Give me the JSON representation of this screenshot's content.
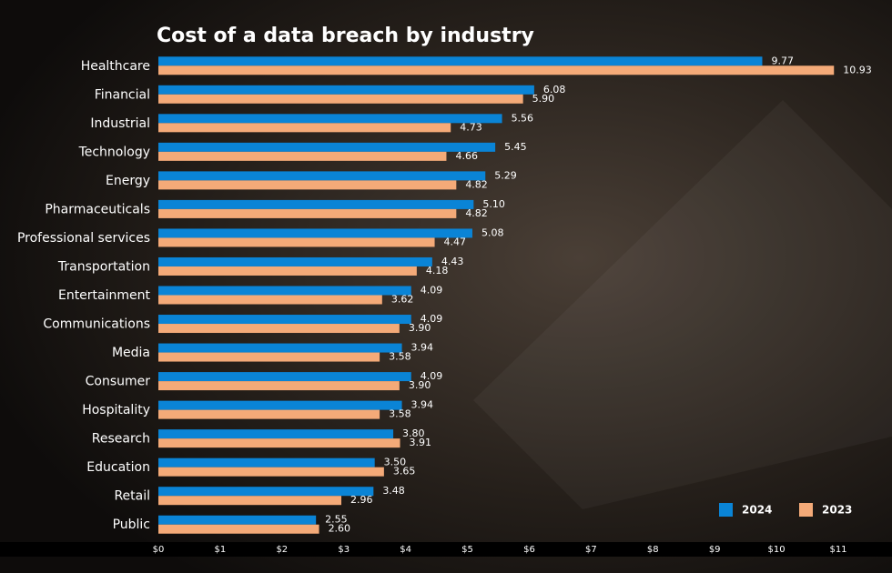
{
  "chart_data": {
    "type": "bar",
    "orientation": "horizontal",
    "title": "Cost of a data breach by industry",
    "categories": [
      "Healthcare",
      "Financial",
      "Industrial",
      "Technology",
      "Energy",
      "Pharmaceuticals",
      "Professional services",
      "Transportation",
      "Entertainment",
      "Communications",
      "Media",
      "Consumer",
      "Hospitality",
      "Research",
      "Education",
      "Retail",
      "Public"
    ],
    "series": [
      {
        "name": "2024",
        "color": "#0a84d6",
        "values": [
          9.77,
          6.08,
          5.56,
          5.45,
          5.29,
          5.1,
          5.08,
          4.43,
          4.09,
          4.09,
          3.94,
          4.09,
          3.94,
          3.8,
          3.5,
          3.48,
          2.55
        ],
        "value_labels": [
          "9.77",
          "6.08",
          "5.56",
          "5.45",
          "5.29",
          "5.10",
          "5.08",
          "4.43",
          "4.09",
          "4.09",
          "3.94",
          "4.09",
          "3.94",
          "3.80",
          "3.50",
          "3.48",
          "2.55"
        ]
      },
      {
        "name": "2023",
        "color": "#f4aa78",
        "values": [
          10.93,
          5.9,
          4.73,
          4.66,
          4.82,
          4.82,
          4.47,
          4.18,
          3.62,
          3.9,
          3.58,
          3.9,
          3.58,
          3.91,
          3.65,
          2.96,
          2.6
        ],
        "value_labels": [
          "10.93",
          "5.90",
          "4.73",
          "4.66",
          "4.82",
          "4.82",
          "4.47",
          "4.18",
          "3.62",
          "3.90",
          "3.58",
          "3.90",
          "3.58",
          "3.91",
          "3.65",
          "2.96",
          "2.60"
        ]
      }
    ],
    "xlim": [
      0,
      11
    ],
    "xticks": [
      {
        "value": 0,
        "label": "$0"
      },
      {
        "value": 1,
        "label": "$1"
      },
      {
        "value": 2,
        "label": "$2"
      },
      {
        "value": 3,
        "label": "$3"
      },
      {
        "value": 4,
        "label": "$4"
      },
      {
        "value": 5,
        "label": "$5"
      },
      {
        "value": 6,
        "label": "$6"
      },
      {
        "value": 7,
        "label": "$7"
      },
      {
        "value": 8,
        "label": "$8"
      },
      {
        "value": 9,
        "label": "$9"
      },
      {
        "value": 10,
        "label": "$10"
      },
      {
        "value": 11,
        "label": "$11"
      }
    ],
    "legend": "bottom-right"
  }
}
